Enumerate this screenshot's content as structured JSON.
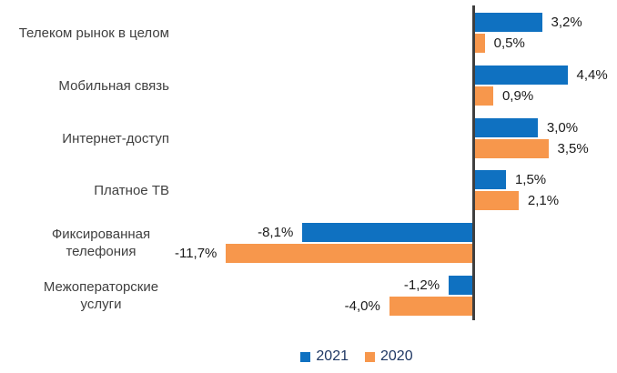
{
  "chart_data": {
    "type": "bar",
    "orientation": "horizontal",
    "title": "",
    "categories": [
      "Телеком рынок в целом",
      "Мобильная связь",
      "Интернет-доступ",
      "Платное ТВ",
      "Фиксированная телефония",
      "Межоператорские услуги"
    ],
    "series": [
      {
        "name": "2021",
        "color": "#0f71c1",
        "values": [
          3.2,
          4.4,
          3.0,
          1.5,
          -8.1,
          -1.2
        ],
        "labels": [
          "3,2%",
          "4,4%",
          "3,0%",
          "1,5%",
          "-8,1%",
          "-1,2%"
        ]
      },
      {
        "name": "2020",
        "color": "#f7974c",
        "values": [
          0.5,
          0.9,
          3.5,
          2.1,
          -11.7,
          -4.0
        ],
        "labels": [
          "0,5%",
          "0,9%",
          "3,5%",
          "2,1%",
          "-11,7%",
          "-4,0%"
        ]
      }
    ],
    "legend": {
      "position": "bottom",
      "items": [
        "2021",
        "2020"
      ]
    },
    "axis_baseline_color": "#3f3f3f",
    "category_label_color": "#404040",
    "value_label_color": "#1a1a1a",
    "legend_text_color": "#1f3864",
    "xlim": [
      -12,
      5
    ],
    "grid": false
  }
}
